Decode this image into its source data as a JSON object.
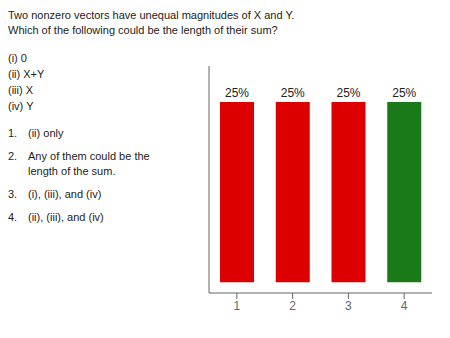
{
  "chart_data": {
    "type": "bar",
    "categories": [
      "1",
      "2",
      "3",
      "4"
    ],
    "values": [
      25,
      25,
      25,
      25
    ],
    "value_labels": [
      "25%",
      "25%",
      "25%",
      "25%"
    ],
    "data_labels": true,
    "colors": [
      "#dd0000",
      "#dd0000",
      "#dd0000",
      "#1a7a1a"
    ],
    "ylim": [
      -1.5,
      30
    ],
    "yticks": [],
    "tick_labels": "x",
    "annotations": [
      "Two nonzero vectors have unequal magnitudes of X and Y.",
      "Which of the following could be the length of their sum?",
      "(i) 0",
      "(ii) X+Y",
      "(iii) X",
      "(iv) Y",
      "1.",
      "(ii) only",
      "2.",
      "Any of them could be the\nlength of the sum.",
      "3.",
      "(i), (iii), and (iv)",
      "4.",
      "(ii), (iii), and (iv)"
    ]
  }
}
